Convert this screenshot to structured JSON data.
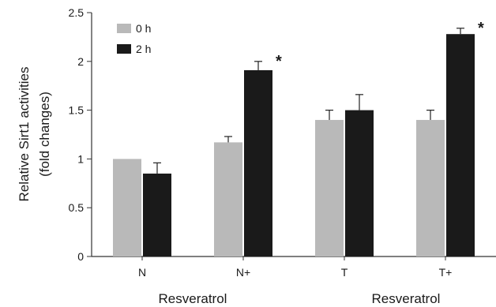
{
  "chart_data": {
    "type": "bar",
    "title": "",
    "ylabel": [
      "Relative Sirt1 activities",
      "(fold changes)"
    ],
    "ylim": [
      0,
      2.5
    ],
    "yticks": [
      "0",
      "0.5",
      "1",
      "1.5",
      "2",
      "2.5"
    ],
    "categories": [
      "N",
      "N+",
      "T",
      "T+"
    ],
    "group_labels": [
      "Resveratrol",
      "Resveratrol"
    ],
    "legend_position": "top-left",
    "grid": false,
    "series": [
      {
        "name": "0 h",
        "color": "#b9b9b9",
        "values": [
          1.0,
          1.17,
          1.4,
          1.4
        ],
        "errors": [
          0,
          0.06,
          0.1,
          0.1
        ],
        "stars": [
          "",
          "",
          "",
          ""
        ]
      },
      {
        "name": "2 h",
        "color": "#1a1a1a",
        "values": [
          0.85,
          1.91,
          1.5,
          2.28
        ],
        "errors": [
          0.11,
          0.09,
          0.16,
          0.06
        ],
        "stars": [
          "",
          "*",
          "",
          "*"
        ]
      }
    ]
  }
}
